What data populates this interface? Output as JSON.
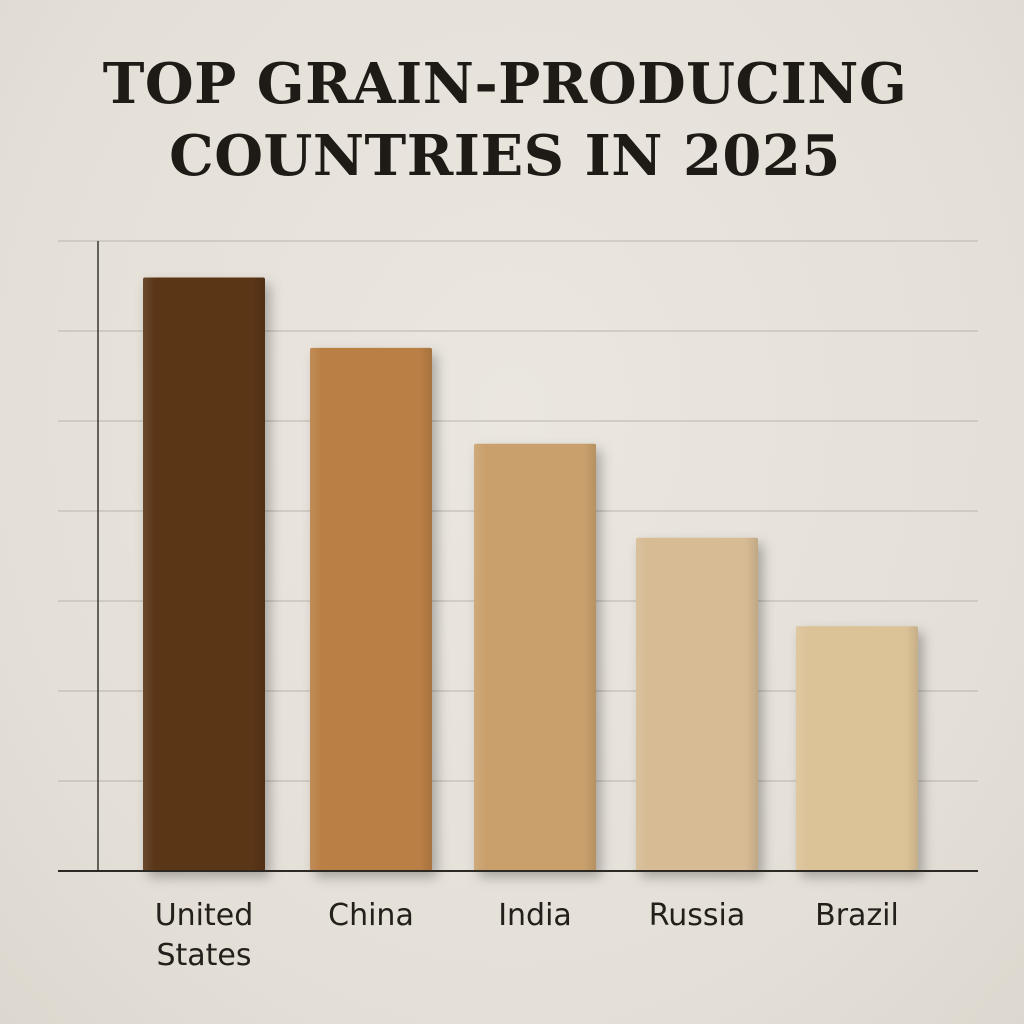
{
  "chart_data": {
    "type": "bar",
    "title_lines": [
      "TOP GRAIN-PRODUCING",
      "COUNTRIES IN 2025"
    ],
    "categories": [
      [
        "United",
        "States"
      ],
      [
        "China"
      ],
      [
        "India"
      ],
      [
        "Russia"
      ],
      [
        "Brazil"
      ]
    ],
    "values": [
      6.5,
      5.73,
      4.68,
      3.65,
      2.68
    ],
    "ylim": [
      0,
      6.9
    ],
    "grid": true,
    "xlabel": "",
    "ylabel": "",
    "colors": [
      "#5a3418",
      "#b97f45",
      "#c9a06c",
      "#d6bb94",
      "#dcc297"
    ]
  }
}
